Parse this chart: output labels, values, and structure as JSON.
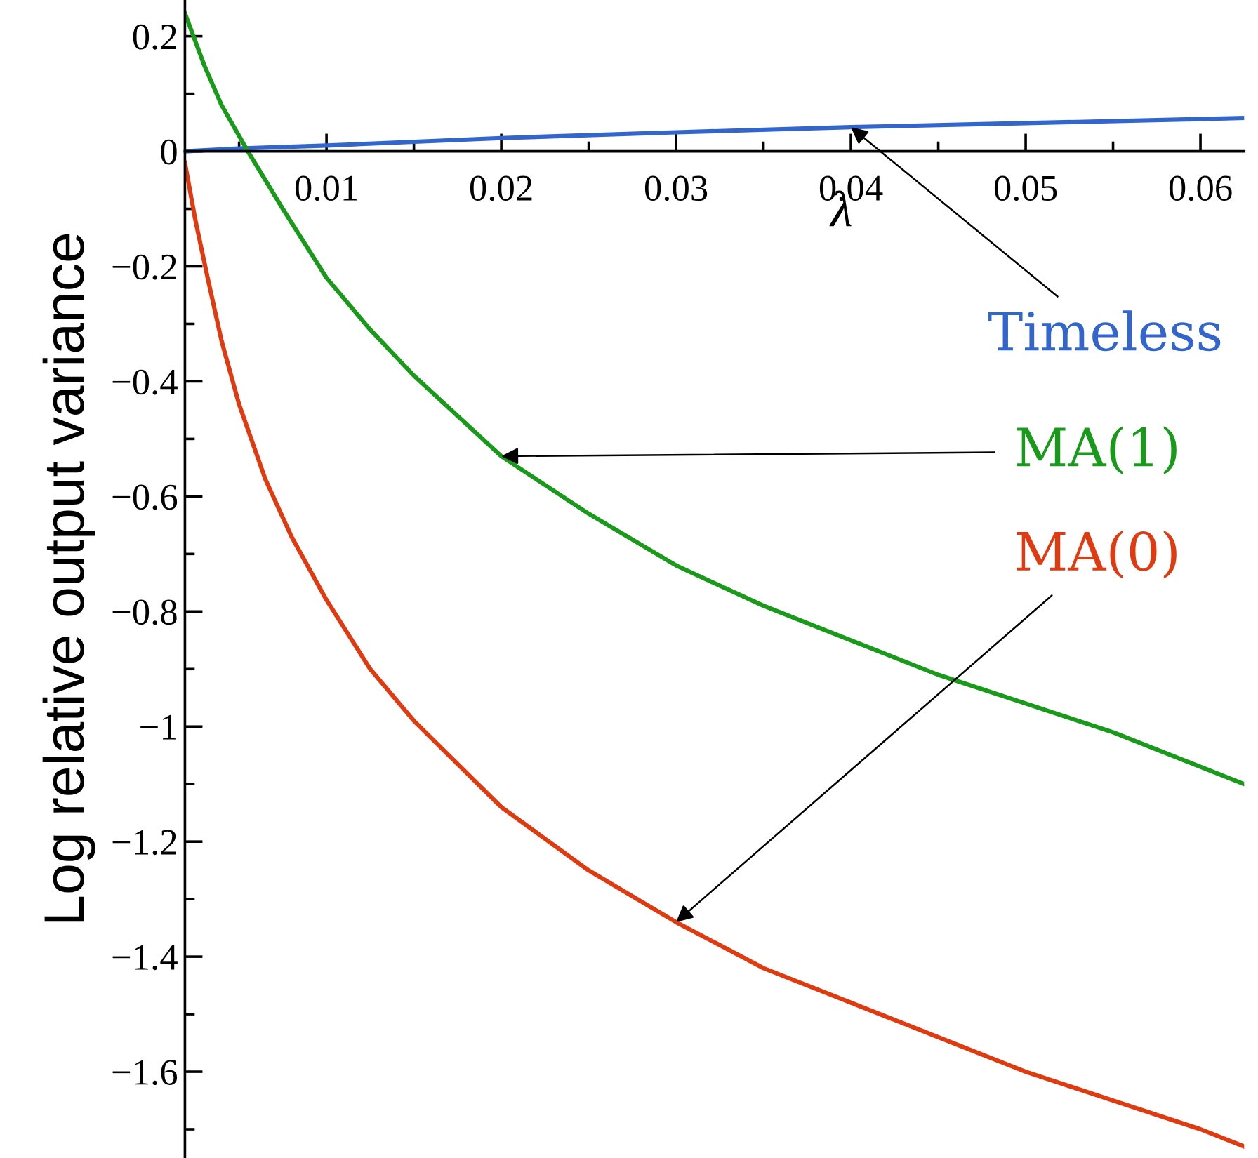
{
  "chart_data": {
    "type": "line",
    "xlabel": "λ",
    "ylabel": "Log relative output variance",
    "xlim": [
      0.0019,
      0.0625
    ],
    "ylim": [
      -1.75,
      0.263
    ],
    "xticks": [
      0.01,
      0.02,
      0.03,
      0.04,
      0.05,
      0.06
    ],
    "yticks": [
      {
        "value": -1.6,
        "label": "−1.6"
      },
      {
        "value": -1.4,
        "label": "−1.4"
      },
      {
        "value": -1.2,
        "label": "−1.2"
      },
      {
        "value": -1,
        "label": "−1"
      },
      {
        "value": -0.8,
        "label": "−0.8"
      },
      {
        "value": -0.6,
        "label": "−0.6"
      },
      {
        "value": -0.4,
        "label": "−0.4"
      },
      {
        "value": -0.2,
        "label": "−0.2"
      },
      0,
      0.2
    ],
    "grid": false,
    "legend": false,
    "marker": "none",
    "line_style": "solid",
    "series": [
      {
        "name": "Timeless",
        "color": "#3366cc",
        "x": [
          0.0019,
          0.005,
          0.01,
          0.02,
          0.03,
          0.04,
          0.05,
          0.06,
          0.0625
        ],
        "values": [
          0,
          0.005,
          0.01,
          0.023,
          0.033,
          0.042,
          0.049,
          0.056,
          0.058
        ]
      },
      {
        "name": "MA(1)",
        "color": "#1a9a1a",
        "x": [
          0.0019,
          0.003,
          0.004,
          0.0055,
          0.0075,
          0.01,
          0.0125,
          0.015,
          0.02,
          0.025,
          0.03,
          0.035,
          0.04,
          0.045,
          0.05,
          0.055,
          0.06,
          0.0625
        ],
        "values": [
          0.24,
          0.15,
          0.08,
          0,
          -0.1,
          -0.22,
          -0.31,
          -0.39,
          -0.53,
          -0.63,
          -0.72,
          -0.79,
          -0.85,
          -0.91,
          -0.96,
          -1.01,
          -1.07,
          -1.1
        ]
      },
      {
        "name": "MA(0)",
        "color": "#e03a10",
        "x": [
          0.0019,
          0.0025,
          0.0032,
          0.004,
          0.005,
          0.0065,
          0.008,
          0.01,
          0.0125,
          0.015,
          0.02,
          0.025,
          0.03,
          0.035,
          0.04,
          0.045,
          0.05,
          0.055,
          0.06,
          0.0625
        ],
        "values": [
          -0.02,
          -0.12,
          -0.22,
          -0.33,
          -0.44,
          -0.57,
          -0.67,
          -0.78,
          -0.9,
          -0.99,
          -1.14,
          -1.25,
          -1.34,
          -1.42,
          -1.48,
          -1.54,
          -1.6,
          -1.65,
          -1.7,
          -1.73
        ]
      }
    ]
  }
}
